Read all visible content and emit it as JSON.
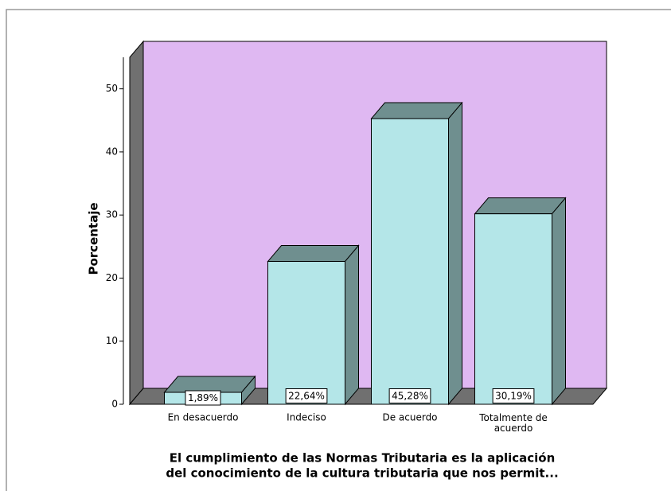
{
  "chart_data": {
    "type": "bar3d",
    "categories": [
      "En desacuerdo",
      "Indeciso",
      "De acuerdo",
      "Totalmente de acuerdo"
    ],
    "values": [
      1.89,
      22.64,
      45.28,
      30.19
    ],
    "value_labels": [
      "1,89%",
      "22,64%",
      "45,28%",
      "30,19%"
    ],
    "color": "#b4e6e8",
    "ylabel": "Porcentaje",
    "xlabel": [
      "El cumplimiento de las Normas Tributaria es la aplicación",
      "del conocimiento de la cultura tributaria que nos permit..."
    ],
    "ylim": [
      0,
      55
    ],
    "yticks": [
      0,
      10,
      20,
      30,
      40,
      50
    ],
    "background": "#dfb8f2"
  }
}
